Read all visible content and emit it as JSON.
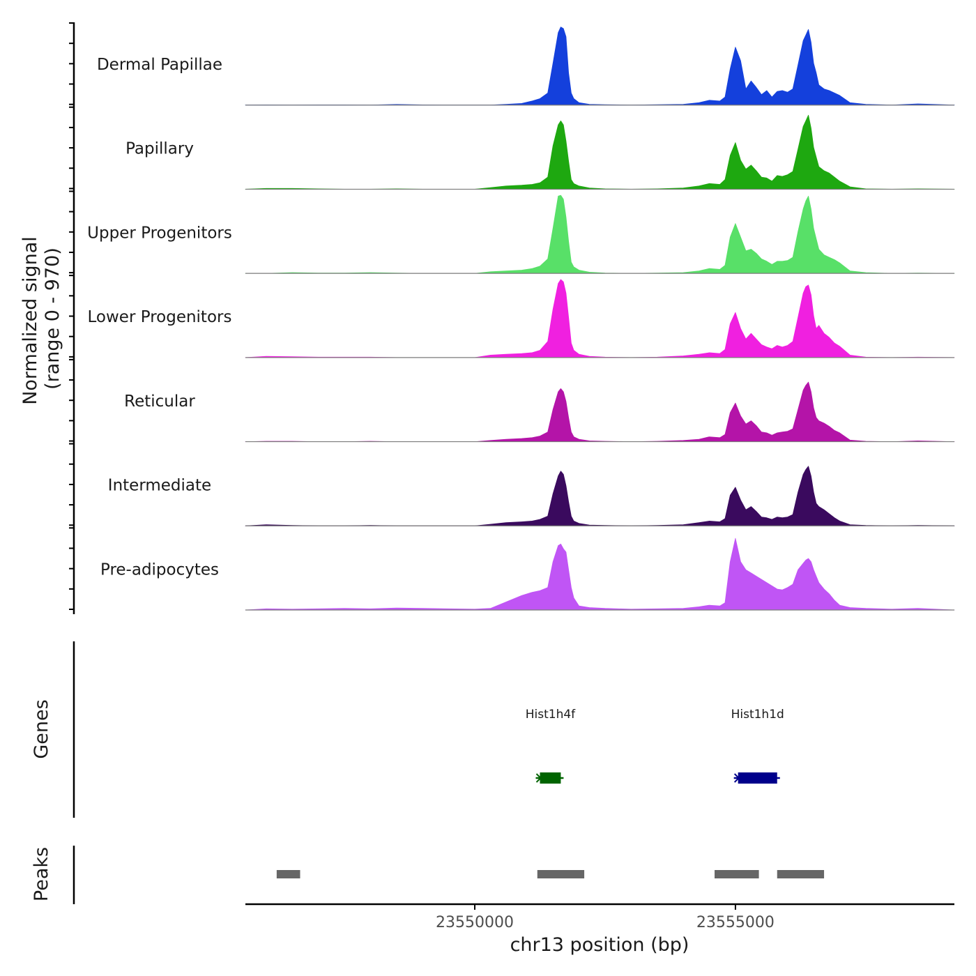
{
  "chart_data": {
    "type": "area",
    "title": "",
    "chromosome": "chr13",
    "xlabel": "chr13 position (bp)",
    "xlim": [
      23545600,
      23559200
    ],
    "xticks": [
      23550000,
      23555000
    ],
    "xtick_labels": [
      "23550000",
      "23555000"
    ],
    "ylabel": "Normalized signal",
    "ylabel_range": "(range 0 - 970)",
    "ylim": [
      0,
      970
    ],
    "gene_track_label": "Genes",
    "peak_track_label": "Peaks",
    "series": [
      {
        "name": "Dermal Papillae",
        "color": "#1440dc",
        "x": [
          23545600,
          23546000,
          23546500,
          23547000,
          23547500,
          23548000,
          23548500,
          23549000,
          23549500,
          23550000,
          23550300,
          23550600,
          23550900,
          23551100,
          23551250,
          23551400,
          23551500,
          23551600,
          23551650,
          23551700,
          23551750,
          23551800,
          23551850,
          23551900,
          23552000,
          23552200,
          23552500,
          23553000,
          23553500,
          23554000,
          23554300,
          23554500,
          23554700,
          23554800,
          23554900,
          23555000,
          23555100,
          23555200,
          23555300,
          23555400,
          23555500,
          23555600,
          23555700,
          23555800,
          23555900,
          23556000,
          23556100,
          23556200,
          23556300,
          23556350,
          23556400,
          23556450,
          23556500,
          23556550,
          23556600,
          23556700,
          23556800,
          23556900,
          23557000,
          23557200,
          23557500,
          23558000,
          23558500,
          23559200
        ],
        "y": [
          0,
          3,
          0,
          3,
          3,
          0,
          8,
          3,
          0,
          0,
          0,
          10,
          20,
          50,
          80,
          150,
          520,
          900,
          970,
          950,
          850,
          400,
          150,
          80,
          30,
          10,
          5,
          0,
          5,
          10,
          30,
          60,
          50,
          100,
          450,
          720,
          550,
          200,
          300,
          220,
          130,
          180,
          100,
          170,
          180,
          160,
          200,
          500,
          800,
          870,
          940,
          780,
          520,
          400,
          250,
          200,
          180,
          150,
          120,
          30,
          10,
          0,
          15,
          0
        ]
      },
      {
        "name": "Papillary",
        "color": "#1ea810",
        "x": [
          23545600,
          23546000,
          23546500,
          23547000,
          23547500,
          23548000,
          23548500,
          23549000,
          23549500,
          23550000,
          23550300,
          23550600,
          23550900,
          23551100,
          23551250,
          23551400,
          23551500,
          23551600,
          23551650,
          23551700,
          23551750,
          23551800,
          23551850,
          23551900,
          23552000,
          23552200,
          23552500,
          23553000,
          23553500,
          23554000,
          23554300,
          23554500,
          23554700,
          23554800,
          23554900,
          23555000,
          23555100,
          23555200,
          23555300,
          23555400,
          23555500,
          23555600,
          23555700,
          23555800,
          23555900,
          23556000,
          23556100,
          23556200,
          23556300,
          23556350,
          23556400,
          23556450,
          23556500,
          23556550,
          23556600,
          23556700,
          23556800,
          23556900,
          23557000,
          23557200,
          23557500,
          23558000,
          23558500,
          23559200
        ],
        "y": [
          0,
          10,
          10,
          5,
          0,
          0,
          5,
          0,
          0,
          0,
          20,
          40,
          50,
          60,
          80,
          150,
          540,
          800,
          850,
          800,
          600,
          350,
          120,
          70,
          40,
          15,
          5,
          0,
          5,
          15,
          40,
          70,
          60,
          120,
          420,
          580,
          360,
          250,
          300,
          230,
          150,
          140,
          100,
          170,
          160,
          180,
          220,
          500,
          780,
          850,
          920,
          760,
          520,
          400,
          280,
          230,
          200,
          150,
          100,
          30,
          5,
          0,
          5,
          0
        ]
      },
      {
        "name": "Upper Progenitors",
        "color": "#58e068",
        "x": [
          23545600,
          23546000,
          23546500,
          23547000,
          23547500,
          23548000,
          23548500,
          23549000,
          23549500,
          23550000,
          23550300,
          23550600,
          23550900,
          23551100,
          23551250,
          23551400,
          23551500,
          23551600,
          23551650,
          23551700,
          23551750,
          23551800,
          23551850,
          23551900,
          23552000,
          23552200,
          23552500,
          23553000,
          23553500,
          23554000,
          23554300,
          23554500,
          23554700,
          23554800,
          23554900,
          23555000,
          23555100,
          23555200,
          23555300,
          23555400,
          23555500,
          23555600,
          23555700,
          23555800,
          23555900,
          23556000,
          23556100,
          23556200,
          23556300,
          23556350,
          23556400,
          23556450,
          23556500,
          23556550,
          23556600,
          23556700,
          23556800,
          23556900,
          23557000,
          23557200,
          23557500,
          23558000,
          23558500,
          23559200
        ],
        "y": [
          0,
          0,
          10,
          5,
          5,
          10,
          5,
          0,
          0,
          0,
          20,
          30,
          40,
          60,
          90,
          180,
          560,
          960,
          990,
          920,
          700,
          400,
          140,
          80,
          40,
          15,
          5,
          0,
          5,
          10,
          30,
          60,
          50,
          100,
          450,
          620,
          450,
          280,
          300,
          250,
          180,
          150,
          110,
          150,
          150,
          160,
          200,
          520,
          800,
          900,
          960,
          800,
          560,
          430,
          300,
          230,
          200,
          170,
          130,
          30,
          10,
          0,
          5,
          0
        ]
      },
      {
        "name": "Lower Progenitors",
        "color": "#f020e0",
        "x": [
          23545600,
          23546000,
          23546500,
          23547000,
          23547500,
          23548000,
          23548500,
          23549000,
          23549500,
          23550000,
          23550300,
          23550600,
          23550900,
          23551100,
          23551250,
          23551400,
          23551500,
          23551600,
          23551650,
          23551700,
          23551750,
          23551800,
          23551850,
          23551900,
          23552000,
          23552200,
          23552500,
          23553000,
          23553500,
          23554000,
          23554300,
          23554500,
          23554700,
          23554800,
          23554900,
          23555000,
          23555100,
          23555200,
          23555300,
          23555400,
          23555500,
          23555600,
          23555700,
          23555800,
          23555900,
          23556000,
          23556100,
          23556200,
          23556300,
          23556350,
          23556400,
          23556450,
          23556500,
          23556550,
          23556600,
          23556700,
          23556800,
          23556900,
          23557000,
          23557200,
          23557500,
          23558000,
          23558500,
          23559200
        ],
        "y": [
          0,
          15,
          10,
          5,
          5,
          5,
          0,
          0,
          0,
          0,
          30,
          40,
          50,
          60,
          90,
          200,
          600,
          920,
          970,
          940,
          800,
          500,
          180,
          90,
          40,
          15,
          5,
          0,
          5,
          20,
          40,
          60,
          50,
          100,
          420,
          560,
          360,
          230,
          300,
          230,
          160,
          130,
          110,
          150,
          130,
          150,
          200,
          500,
          800,
          880,
          900,
          780,
          520,
          360,
          400,
          300,
          250,
          180,
          140,
          30,
          5,
          0,
          5,
          0
        ]
      },
      {
        "name": "Reticular",
        "color": "#b414a8",
        "x": [
          23545600,
          23546000,
          23546500,
          23547000,
          23547500,
          23548000,
          23548500,
          23549000,
          23549500,
          23550000,
          23550300,
          23550600,
          23550900,
          23551100,
          23551250,
          23551400,
          23551500,
          23551600,
          23551650,
          23551700,
          23551750,
          23551800,
          23551850,
          23551900,
          23552000,
          23552200,
          23552500,
          23553000,
          23553500,
          23554000,
          23554300,
          23554500,
          23554700,
          23554800,
          23554900,
          23555000,
          23555100,
          23555200,
          23555300,
          23555400,
          23555500,
          23555600,
          23555700,
          23555800,
          23555900,
          23556000,
          23556100,
          23556200,
          23556300,
          23556350,
          23556400,
          23556450,
          23556500,
          23556550,
          23556600,
          23556700,
          23556800,
          23556900,
          23557000,
          23557200,
          23557500,
          23558000,
          23558500,
          23559200
        ],
        "y": [
          0,
          5,
          5,
          0,
          0,
          5,
          0,
          0,
          0,
          0,
          15,
          30,
          40,
          50,
          70,
          120,
          400,
          620,
          660,
          620,
          500,
          300,
          120,
          60,
          30,
          10,
          5,
          0,
          5,
          15,
          30,
          60,
          50,
          90,
          360,
          480,
          320,
          220,
          260,
          200,
          120,
          110,
          80,
          110,
          120,
          130,
          160,
          400,
          640,
          700,
          740,
          620,
          420,
          300,
          260,
          230,
          190,
          140,
          110,
          20,
          5,
          0,
          10,
          0
        ]
      },
      {
        "name": "Intermediate",
        "color": "#3a0a5e",
        "x": [
          23545600,
          23546000,
          23546500,
          23547000,
          23547500,
          23548000,
          23548500,
          23549000,
          23549500,
          23550000,
          23550300,
          23550600,
          23550900,
          23551100,
          23551250,
          23551400,
          23551500,
          23551600,
          23551650,
          23551700,
          23551750,
          23551800,
          23551850,
          23551900,
          23552000,
          23552200,
          23552500,
          23553000,
          23553500,
          23554000,
          23554300,
          23554500,
          23554700,
          23554800,
          23554900,
          23555000,
          23555100,
          23555200,
          23555300,
          23555400,
          23555500,
          23555600,
          23555700,
          23555800,
          23555900,
          23556000,
          23556100,
          23556200,
          23556300,
          23556350,
          23556400,
          23556450,
          23556500,
          23556550,
          23556600,
          23556700,
          23556800,
          23556900,
          23557000,
          23557200,
          23557500,
          23558000,
          23558500,
          23559200
        ],
        "y": [
          0,
          15,
          5,
          0,
          0,
          5,
          0,
          0,
          0,
          0,
          20,
          40,
          50,
          60,
          80,
          120,
          400,
          620,
          680,
          640,
          500,
          300,
          120,
          60,
          30,
          10,
          5,
          0,
          5,
          15,
          40,
          60,
          50,
          90,
          380,
          480,
          320,
          200,
          240,
          180,
          110,
          100,
          80,
          110,
          100,
          110,
          140,
          420,
          640,
          700,
          740,
          620,
          420,
          280,
          240,
          200,
          150,
          100,
          60,
          15,
          5,
          0,
          5,
          0
        ]
      },
      {
        "name": "Pre-adipocytes",
        "color": "#c055f5",
        "x": [
          23545600,
          23546000,
          23546500,
          23547000,
          23547500,
          23548000,
          23548500,
          23549000,
          23549500,
          23550000,
          23550300,
          23550600,
          23550900,
          23551100,
          23551250,
          23551400,
          23551500,
          23551600,
          23551650,
          23551700,
          23551750,
          23551800,
          23551850,
          23551900,
          23552000,
          23552200,
          23552500,
          23553000,
          23553500,
          23554000,
          23554300,
          23554500,
          23554700,
          23554800,
          23554900,
          23555000,
          23555100,
          23555200,
          23555300,
          23555400,
          23555500,
          23555600,
          23555700,
          23555800,
          23555900,
          23556000,
          23556100,
          23556200,
          23556300,
          23556350,
          23556400,
          23556450,
          23556500,
          23556550,
          23556600,
          23556700,
          23556800,
          23556900,
          23557000,
          23557200,
          23557500,
          23558000,
          23558500,
          23559200
        ],
        "y": [
          0,
          15,
          10,
          15,
          20,
          15,
          25,
          20,
          15,
          10,
          20,
          100,
          180,
          220,
          240,
          280,
          600,
          800,
          820,
          760,
          720,
          500,
          280,
          150,
          50,
          30,
          20,
          10,
          15,
          20,
          40,
          60,
          50,
          90,
          600,
          890,
          600,
          500,
          460,
          420,
          380,
          340,
          300,
          260,
          250,
          280,
          320,
          500,
          580,
          620,
          640,
          600,
          500,
          420,
          340,
          260,
          200,
          120,
          60,
          30,
          20,
          10,
          20,
          0
        ]
      }
    ],
    "genes": [
      {
        "name": "Hist1h4f",
        "start": 23551250,
        "end": 23551650,
        "color": "#006400"
      },
      {
        "name": "Hist1h1d",
        "start": 23555050,
        "end": 23555800,
        "color": "#00008b"
      }
    ],
    "peaks": [
      {
        "start": 23546200,
        "end": 23546650
      },
      {
        "start": 23551200,
        "end": 23552100
      },
      {
        "start": 23554600,
        "end": 23555450
      },
      {
        "start": 23555800,
        "end": 23556700
      }
    ]
  }
}
